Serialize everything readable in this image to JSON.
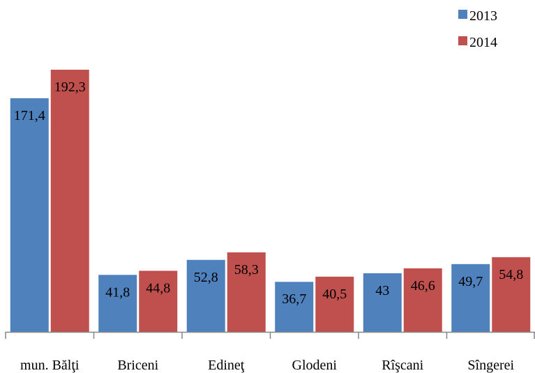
{
  "chart_data": {
    "type": "bar",
    "categories": [
      "mun. Bălţi",
      "Briceni",
      "Edineţ",
      "Glodeni",
      "Rîşcani",
      "Sîngerei"
    ],
    "series": [
      {
        "name": "2013",
        "color": "#4F81BD",
        "values": [
          171.4,
          41.8,
          52.8,
          36.7,
          43,
          49.7
        ],
        "labels": [
          "171,4",
          "41,8",
          "52,8",
          "36,7",
          "43",
          "49,7"
        ]
      },
      {
        "name": "2014",
        "color": "#C0504D",
        "values": [
          192.3,
          44.8,
          58.3,
          40.5,
          46.6,
          54.8
        ],
        "labels": [
          "192,3",
          "44,8",
          "58,3",
          "40,5",
          "46,6",
          "54,8"
        ]
      }
    ],
    "title": "",
    "xlabel": "",
    "ylabel": "",
    "ylim": [
      0,
      192.3
    ],
    "grid": false,
    "legend_position": "top-right",
    "axis_color": "#868686"
  }
}
